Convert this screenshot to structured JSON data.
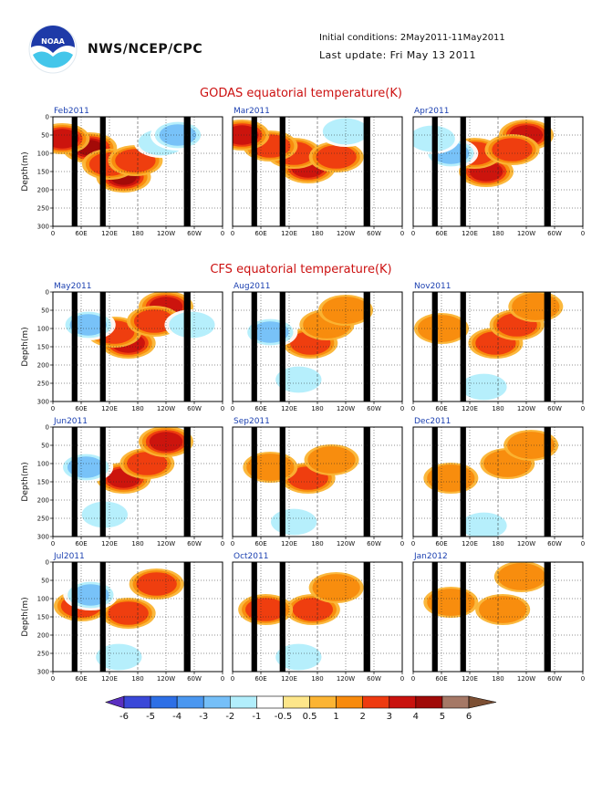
{
  "header": {
    "agency": "NWS/NCEP/CPC",
    "initial_conditions": "Initial conditions: 2May2011-11May2011",
    "last_update": "Last update: Fri May 13 2011",
    "logo_name": "noaa-logo"
  },
  "colors": {
    "levels": [
      "#5a2fc0",
      "#3a48d8",
      "#2d6fe6",
      "#4a97f0",
      "#75bff8",
      "#b2eefc",
      "#ffffff",
      "#fde68a",
      "#fbb433",
      "#f88a0c",
      "#ee3a10",
      "#c9120e",
      "#a00a08",
      "#a57866",
      "#7c4f33"
    ],
    "land_mask": "#000000",
    "title_text": "#cc1111",
    "panel_title_text": "#1a3fb0"
  },
  "chart_data": {
    "type": "heatmap",
    "xtick_labels": [
      "0",
      "60E",
      "120E",
      "180",
      "120W",
      "60W",
      "0"
    ],
    "ytick_labels": [
      "0",
      "50",
      "100",
      "150",
      "200",
      "250",
      "300"
    ],
    "ylabel": "Depth(m)",
    "ylim": [
      300,
      0
    ],
    "xrange_deg_east": [
      0,
      360
    ],
    "land_mask_deg_east": [
      [
        40,
        52
      ],
      [
        100,
        112
      ],
      [
        278,
        292
      ]
    ],
    "grid": "dotted",
    "colorbar": {
      "tick_labels": [
        "-6",
        "-5",
        "-4",
        "-3",
        "-2",
        "-1",
        "-0.5",
        "0.5",
        "1",
        "2",
        "3",
        "4",
        "5",
        "6"
      ],
      "unit": "K",
      "placement": "bottom"
    },
    "sections": [
      {
        "title": "GODAS equatorial temperature(K)",
        "panels": [
          {
            "label": "Feb2011",
            "pattern": [
              {
                "lon": 78,
                "depth": 85,
                "value": 4
              },
              {
                "lon": 150,
                "depth": 165,
                "value": 4
              },
              {
                "lon": 120,
                "depth": 130,
                "value": 2
              },
              {
                "lon": 175,
                "depth": 120,
                "value": 2
              },
              {
                "lon": 230,
                "depth": 70,
                "value": -1
              },
              {
                "lon": 265,
                "depth": 50,
                "value": -2
              },
              {
                "lon": 20,
                "depth": 60,
                "value": 3
              }
            ]
          },
          {
            "label": "Mar2011",
            "pattern": [
              {
                "lon": 160,
                "depth": 140,
                "value": 3
              },
              {
                "lon": 130,
                "depth": 100,
                "value": 2
              },
              {
                "lon": 220,
                "depth": 110,
                "value": 2
              },
              {
                "lon": 80,
                "depth": 80,
                "value": 2
              },
              {
                "lon": 240,
                "depth": 40,
                "value": -1
              },
              {
                "lon": 20,
                "depth": 50,
                "value": 3
              }
            ]
          },
          {
            "label": "Apr2011",
            "pattern": [
              {
                "lon": 155,
                "depth": 150,
                "value": 3
              },
              {
                "lon": 130,
                "depth": 100,
                "value": 2
              },
              {
                "lon": 240,
                "depth": 50,
                "value": 3
              },
              {
                "lon": 210,
                "depth": 90,
                "value": 2
              },
              {
                "lon": 80,
                "depth": 100,
                "value": -2
              },
              {
                "lon": 40,
                "depth": 60,
                "value": -1
              }
            ]
          }
        ]
      },
      {
        "title": "CFS equatorial temperature(K)",
        "panels": [
          {
            "label": "May2011",
            "pattern": [
              {
                "lon": 160,
                "depth": 140,
                "value": 3
              },
              {
                "lon": 130,
                "depth": 110,
                "value": 2
              },
              {
                "lon": 240,
                "depth": 40,
                "value": 3
              },
              {
                "lon": 215,
                "depth": 80,
                "value": 2
              },
              {
                "lon": 75,
                "depth": 90,
                "value": -2
              },
              {
                "lon": 295,
                "depth": 90,
                "value": -1
              }
            ]
          },
          {
            "label": "Aug2011",
            "pattern": [
              {
                "lon": 165,
                "depth": 140,
                "value": 2
              },
              {
                "lon": 200,
                "depth": 90,
                "value": 1
              },
              {
                "lon": 240,
                "depth": 50,
                "value": 1
              },
              {
                "lon": 80,
                "depth": 110,
                "value": -2
              },
              {
                "lon": 140,
                "depth": 240,
                "value": -1
              }
            ]
          },
          {
            "label": "Nov2011",
            "pattern": [
              {
                "lon": 175,
                "depth": 140,
                "value": 2
              },
              {
                "lon": 220,
                "depth": 90,
                "value": 2
              },
              {
                "lon": 260,
                "depth": 40,
                "value": 1
              },
              {
                "lon": 60,
                "depth": 100,
                "value": 1
              },
              {
                "lon": 150,
                "depth": 260,
                "value": -1
              }
            ]
          }
        ]
      },
      {
        "title": "",
        "panels": [
          {
            "label": "Jun2011",
            "pattern": [
              {
                "lon": 150,
                "depth": 140,
                "value": 3
              },
              {
                "lon": 200,
                "depth": 100,
                "value": 2
              },
              {
                "lon": 240,
                "depth": 40,
                "value": 3
              },
              {
                "lon": 70,
                "depth": 110,
                "value": -2
              },
              {
                "lon": 110,
                "depth": 240,
                "value": -1
              }
            ]
          },
          {
            "label": "Sep2011",
            "pattern": [
              {
                "lon": 160,
                "depth": 140,
                "value": 2
              },
              {
                "lon": 210,
                "depth": 90,
                "value": 1
              },
              {
                "lon": 80,
                "depth": 110,
                "value": 1
              },
              {
                "lon": 130,
                "depth": 260,
                "value": -1
              }
            ]
          },
          {
            "label": "Dec2011",
            "pattern": [
              {
                "lon": 200,
                "depth": 100,
                "value": 1
              },
              {
                "lon": 250,
                "depth": 50,
                "value": 1
              },
              {
                "lon": 80,
                "depth": 140,
                "value": 1
              },
              {
                "lon": 150,
                "depth": 270,
                "value": -1
              }
            ]
          }
        ]
      },
      {
        "title": "",
        "panels": [
          {
            "label": "Jul2011",
            "pattern": [
              {
                "lon": 160,
                "depth": 140,
                "value": 2
              },
              {
                "lon": 220,
                "depth": 60,
                "value": 2
              },
              {
                "lon": 60,
                "depth": 120,
                "value": 2
              },
              {
                "lon": 80,
                "depth": 90,
                "value": -2
              },
              {
                "lon": 140,
                "depth": 260,
                "value": -1
              }
            ]
          },
          {
            "label": "Oct2011",
            "pattern": [
              {
                "lon": 170,
                "depth": 130,
                "value": 2
              },
              {
                "lon": 220,
                "depth": 70,
                "value": 1
              },
              {
                "lon": 70,
                "depth": 130,
                "value": 2
              },
              {
                "lon": 140,
                "depth": 260,
                "value": -1
              }
            ]
          },
          {
            "label": "Jan2012",
            "pattern": [
              {
                "lon": 80,
                "depth": 110,
                "value": 1
              },
              {
                "lon": 190,
                "depth": 130,
                "value": 1
              },
              {
                "lon": 230,
                "depth": 40,
                "value": 1
              }
            ]
          }
        ]
      }
    ]
  }
}
